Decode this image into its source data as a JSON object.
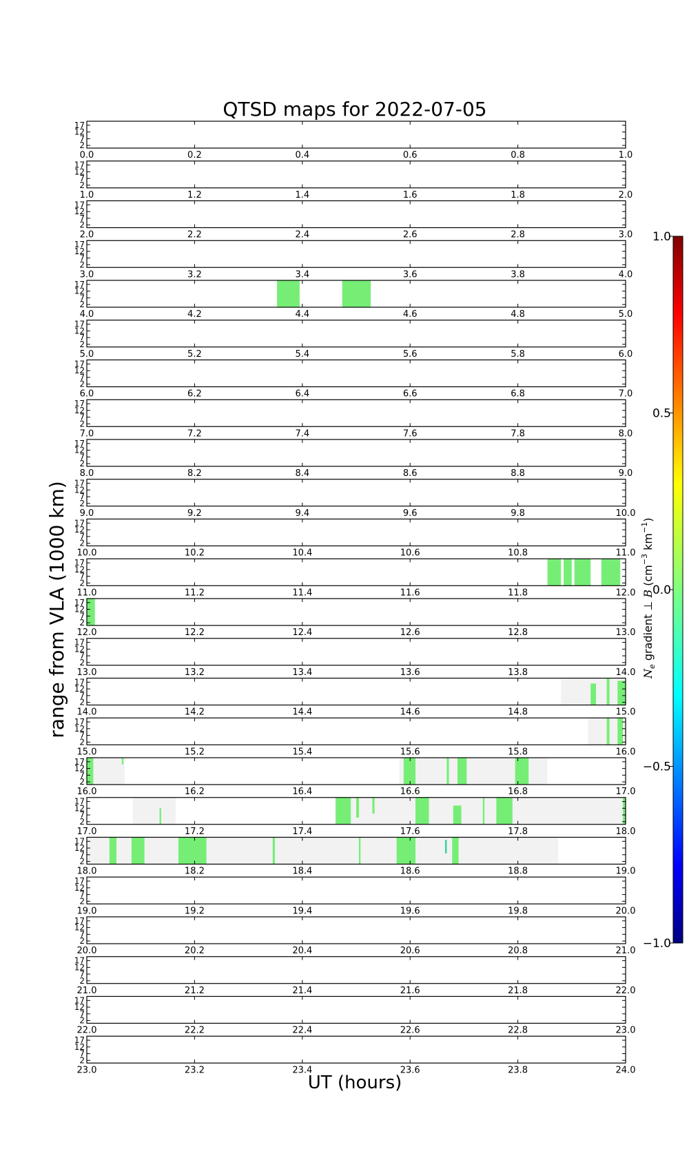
{
  "chart_data": {
    "type": "heatmap",
    "title": "QTSD maps for 2022-07-05",
    "xlabel": "UT (hours)",
    "ylabel": "range from VLA (1000 km)",
    "ytick_labels": [
      "17",
      "12",
      "7",
      "2"
    ],
    "ylim": [
      0,
      20
    ],
    "hours": 24,
    "xtick_step": 0.2,
    "colorbar": {
      "label_latex": "N_e gradient ⊥ B (cm⁻³ km⁻¹)",
      "label_parts": [
        "N",
        "e",
        " gradient ⊥ ",
        "B",
        " (cm",
        "−3",
        " km",
        "−1",
        ")"
      ],
      "ticks": [
        "1.0",
        "0.5",
        "0.0",
        "−0.5",
        "−1.0"
      ],
      "tick_values": [
        1.0,
        0.5,
        0.0,
        -0.5,
        -1.0
      ],
      "range": [
        -1.0,
        1.0
      ],
      "colormap": "jet",
      "stops": [
        "#000080",
        "#0000ff",
        "#00ffff",
        "#80ff80",
        "#ffff00",
        "#ff0000",
        "#800000"
      ]
    },
    "coverage_color": "#f2f2f2",
    "feature_color": "#76ee76",
    "coverage_intervals": [
      {
        "start": 14.88,
        "end": 15.0
      },
      {
        "start": 15.93,
        "end": 16.0
      },
      {
        "start": 16.0,
        "end": 16.07
      },
      {
        "start": 16.58,
        "end": 16.855
      },
      {
        "start": 17.085,
        "end": 17.165
      },
      {
        "start": 17.46,
        "end": 18.0
      },
      {
        "start": 18.0,
        "end": 18.875
      }
    ],
    "features": [
      {
        "start": 4.353,
        "end": 4.395,
        "rmin": 0,
        "rmax": 20
      },
      {
        "start": 4.474,
        "end": 4.527,
        "rmin": 0,
        "rmax": 20
      },
      {
        "start": 11.855,
        "end": 11.88,
        "rmin": 0,
        "rmax": 20
      },
      {
        "start": 11.885,
        "end": 11.9,
        "rmin": 0,
        "rmax": 20
      },
      {
        "start": 11.905,
        "end": 11.935,
        "rmin": 0,
        "rmax": 20
      },
      {
        "start": 11.955,
        "end": 11.99,
        "rmin": 0,
        "rmax": 20
      },
      {
        "start": 12.0,
        "end": 12.015,
        "rmin": 0,
        "rmax": 20
      },
      {
        "start": 14.935,
        "end": 14.945,
        "rmin": 0,
        "rmax": 16
      },
      {
        "start": 14.965,
        "end": 14.97,
        "rmin": 0,
        "rmax": 20
      },
      {
        "start": 14.985,
        "end": 15.0,
        "rmin": 0,
        "rmax": 18
      },
      {
        "start": 15.965,
        "end": 15.97,
        "rmin": 0,
        "rmax": 20
      },
      {
        "start": 15.985,
        "end": 15.995,
        "rmin": 0,
        "rmax": 20
      },
      {
        "start": 16.0,
        "end": 16.012,
        "rmin": 0,
        "rmax": 20
      },
      {
        "start": 16.065,
        "end": 16.068,
        "rmin": 15,
        "rmax": 20
      },
      {
        "start": 16.588,
        "end": 16.61,
        "rmin": 0,
        "rmax": 20
      },
      {
        "start": 16.668,
        "end": 16.672,
        "rmin": 0,
        "rmax": 20
      },
      {
        "start": 16.688,
        "end": 16.705,
        "rmin": 0,
        "rmax": 20
      },
      {
        "start": 16.795,
        "end": 16.82,
        "rmin": 0,
        "rmax": 20
      },
      {
        "start": 17.135,
        "end": 17.138,
        "rmin": 0,
        "rmax": 12
      },
      {
        "start": 17.462,
        "end": 17.49,
        "rmin": 0,
        "rmax": 20
      },
      {
        "start": 17.5,
        "end": 17.505,
        "rmin": 5,
        "rmax": 20
      },
      {
        "start": 17.53,
        "end": 17.534,
        "rmin": 8,
        "rmax": 20
      },
      {
        "start": 17.61,
        "end": 17.635,
        "rmin": 0,
        "rmax": 20
      },
      {
        "start": 17.68,
        "end": 17.695,
        "rmin": 0,
        "rmax": 14
      },
      {
        "start": 17.735,
        "end": 17.738,
        "rmin": 0,
        "rmax": 20
      },
      {
        "start": 17.76,
        "end": 17.79,
        "rmin": 0,
        "rmax": 20
      },
      {
        "start": 17.995,
        "end": 18.0,
        "rmin": 0,
        "rmax": 20
      },
      {
        "start": 18.042,
        "end": 18.055,
        "rmin": 0,
        "rmax": 20
      },
      {
        "start": 18.083,
        "end": 18.107,
        "rmin": 0,
        "rmax": 20
      },
      {
        "start": 18.17,
        "end": 18.222,
        "rmin": 0,
        "rmax": 20
      },
      {
        "start": 18.345,
        "end": 18.349,
        "rmin": 0,
        "rmax": 20
      },
      {
        "start": 18.505,
        "end": 18.508,
        "rmin": 0,
        "rmax": 20
      },
      {
        "start": 18.575,
        "end": 18.61,
        "rmin": 0,
        "rmax": 20
      },
      {
        "start": 18.678,
        "end": 18.69,
        "rmin": 0,
        "rmax": 20
      }
    ],
    "accent_features": [
      {
        "start": 18.665,
        "end": 18.668,
        "rmin": 8,
        "rmax": 18,
        "color": "#2ed29a"
      }
    ]
  }
}
